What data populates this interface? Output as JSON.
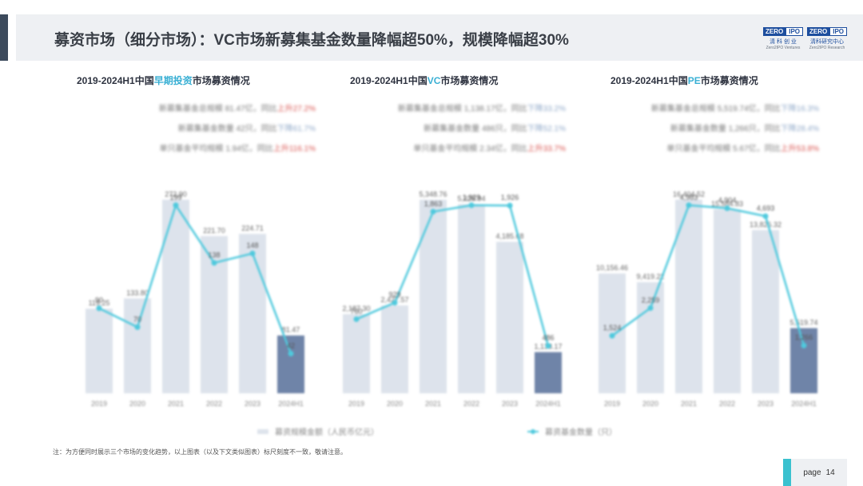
{
  "header": {
    "title": "募资市场（细分市场）：VC市场新募集基金数量降幅超50%，规模降幅超30%",
    "logos": [
      {
        "top_a": "ZERO",
        "top_b": "IPO",
        "cn": "清 科 创 业",
        "en": "Zero2IPO Ventures"
      },
      {
        "top_a": "ZERO",
        "top_b": "IPO",
        "cn": "清科研究中心",
        "en": "Zero2IPO Research"
      }
    ]
  },
  "charts": [
    {
      "title_pre": "2019-2024H1中国",
      "title_hl": "早期投资",
      "title_post": "市场募资情况",
      "stats": [
        {
          "text": "新募集基金总规模 81.47亿，同比",
          "change": "上升27.2%",
          "dir": "pos"
        },
        {
          "text": "新募集基金数量 42只，同比",
          "change": "下降61.7%",
          "dir": "neg"
        },
        {
          "text": "单只基金平均规模 1.94亿，同比",
          "change": "上升116.1%",
          "dir": "pos"
        }
      ]
    },
    {
      "title_pre": "2019-2024H1中国",
      "title_hl": "VC",
      "title_post": "市场募资情况",
      "stats": [
        {
          "text": "新募集基金总规模 1,138.17亿，同比",
          "change": "下降33.2%",
          "dir": "neg"
        },
        {
          "text": "新募集基金数量 486只，同比",
          "change": "下降52.1%",
          "dir": "neg"
        },
        {
          "text": "单只基金平均规模 2.34亿，同比",
          "change": "上升33.7%",
          "dir": "pos"
        }
      ]
    },
    {
      "title_pre": "2019-2024H1中国",
      "title_hl": "PE",
      "title_post": "市场募资情况",
      "stats": [
        {
          "text": "新募集基金总规模 5,519.74亿，同比",
          "change": "下降16.3%",
          "dir": "neg"
        },
        {
          "text": "新募集基金数量 1,266只，同比",
          "change": "下降28.4%",
          "dir": "neg"
        },
        {
          "text": "单只基金平均规模 5.67亿，同比",
          "change": "上升53.8%",
          "dir": "pos"
        }
      ]
    }
  ],
  "chart_data": [
    {
      "type": "bar",
      "categories": [
        "2019",
        "2020",
        "2021",
        "2022",
        "2023",
        "2024H1"
      ],
      "series": [
        {
          "name": "募资规模金额（人民币亿元）",
          "type": "bar",
          "values": [
            119.25,
            133.8,
            272.9,
            221.7,
            224.71,
            81.47
          ],
          "labels": [
            "119.25",
            "133.80",
            "272.90",
            "221.70",
            "224.71",
            "81.47"
          ]
        },
        {
          "name": "募资基金数量（只）",
          "type": "line",
          "values": [
            90,
            70,
            199,
            138,
            148,
            42
          ],
          "labels": [
            "90",
            "70",
            "199",
            "138",
            "148",
            "42"
          ]
        }
      ]
    },
    {
      "type": "bar",
      "categories": [
        "2019",
        "2020",
        "2021",
        "2022",
        "2023",
        "2024H1"
      ],
      "series": [
        {
          "name": "募资规模金额（人民币亿元）",
          "type": "bar",
          "values": [
            2187.3,
            2427.57,
            5348.76,
            5228.94,
            4185.68,
            1138.17
          ],
          "labels": [
            "2,187.30",
            "2,427.57",
            "5,348.76",
            "5,228.94",
            "4,185.68",
            "1,138.17"
          ]
        },
        {
          "name": "募资基金数量（只）",
          "type": "line",
          "values": [
            760,
            929,
            1863,
            1929,
            1926,
            486
          ],
          "labels": [
            "760",
            "929",
            "1,863",
            "1,929",
            "1,926",
            "486"
          ]
        }
      ]
    },
    {
      "type": "bar",
      "categories": [
        "2019",
        "2020",
        "2021",
        "2022",
        "2023",
        "2024H1"
      ],
      "series": [
        {
          "name": "募资规模金额（人民币亿元）",
          "type": "bar",
          "values": [
            10156.46,
            9419.22,
            16404.52,
            15584.83,
            13826.32,
            5519.74
          ],
          "labels": [
            "10,156.46",
            "9,419.22",
            "16,404.52",
            "15,584.83",
            "13,826.32",
            "5,519.74"
          ]
        },
        {
          "name": "募资基金数量（只）",
          "type": "line",
          "values": [
            1524,
            2259,
            4983,
            4904,
            4693,
            1266
          ],
          "labels": [
            "1,524",
            "2,259",
            "4,983",
            "4,904",
            "4,693",
            "1,266"
          ]
        }
      ]
    }
  ],
  "legend": {
    "bar_label": "募资规模金额（人民币亿元）",
    "line_label": "募资基金数量（只）"
  },
  "colors": {
    "bar": "#dde3ec",
    "bar_last": "#6f84a8",
    "line": "#4fc9dd",
    "highlight": "#3ab0d4"
  },
  "footnote": "注：为方便同时展示三个市场的变化趋势，以上图表（以及下文类似图表）标尺刻度不一致，敬请注意。",
  "page": {
    "label": "page",
    "number": "14"
  }
}
